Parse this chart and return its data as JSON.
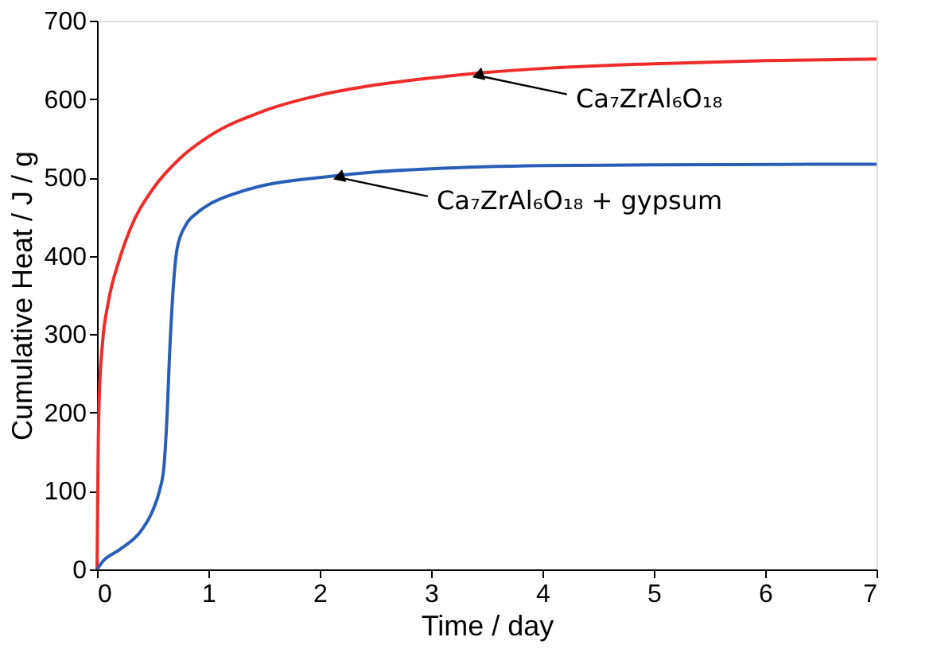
{
  "chart_data": {
    "type": "line",
    "xlabel": "Time / day",
    "ylabel": "Cumulative Heat / J / g",
    "xlim": [
      0,
      7
    ],
    "ylim": [
      0,
      700
    ],
    "xticks": [
      0,
      1,
      2,
      3,
      4,
      5,
      6,
      7
    ],
    "yticks": [
      0,
      100,
      200,
      300,
      400,
      500,
      600,
      700
    ],
    "grid": false,
    "marker": "none",
    "line_style": "solid",
    "series": [
      {
        "color": "#ee2b2b",
        "x": [
          0,
          0.01,
          0.02,
          0.05,
          0.1,
          0.2,
          0.3,
          0.5,
          0.75,
          1,
          1.5,
          2,
          2.5,
          3,
          3.5,
          4,
          5,
          6,
          7
        ],
        "values": [
          0,
          150,
          220,
          290,
          340,
          395,
          435,
          485,
          525,
          552,
          585,
          605,
          618,
          627,
          634,
          639,
          645,
          649,
          651
        ]
      },
      {
        "color": "#2a5db8",
        "x": [
          0,
          0.05,
          0.2,
          0.4,
          0.5,
          0.56,
          0.6,
          0.63,
          0.65,
          0.68,
          0.72,
          0.8,
          0.9,
          1,
          1.25,
          1.5,
          2,
          2.5,
          3,
          4,
          5,
          7
        ],
        "values": [
          0,
          10,
          25,
          50,
          75,
          100,
          130,
          200,
          270,
          350,
          410,
          440,
          455,
          465,
          480,
          490,
          500,
          507,
          511,
          515,
          516,
          517
        ]
      }
    ],
    "annotations": [
      {
        "text": "Ca₇ZrAl₆O₁₈",
        "x": 3.3,
        "y": 632
      },
      {
        "text": "Ca₇ZrAl₆O₁₈ + gypsum",
        "x": 2.05,
        "y": 502
      }
    ]
  }
}
